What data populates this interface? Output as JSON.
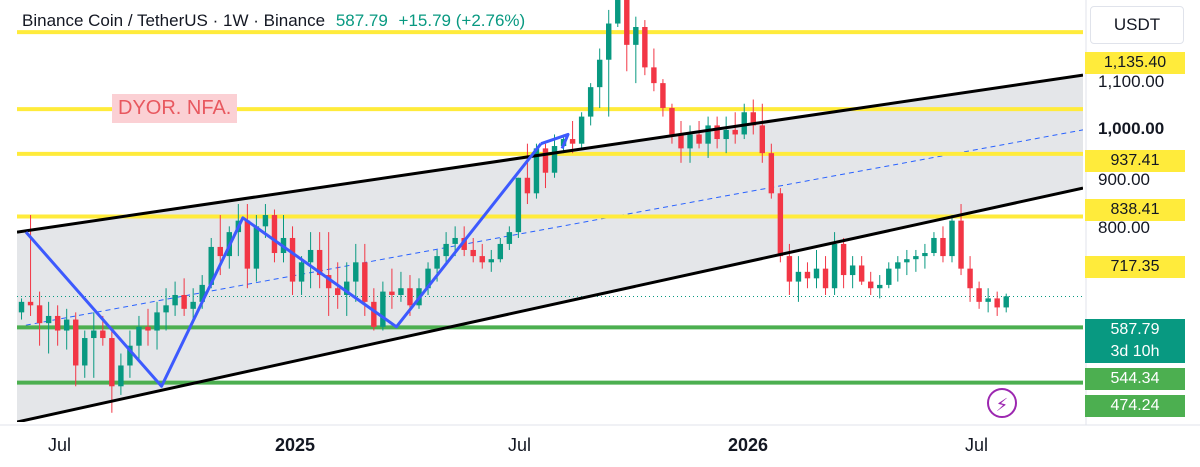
{
  "header": {
    "symbol": "Binance Coin / TetherUS",
    "sep1": "·",
    "interval": "1W",
    "sep2": "·",
    "exchange": "Binance",
    "price": "587.79",
    "change": "+15.79 (+2.76%)"
  },
  "annotation": {
    "text": "DYOR. NFA."
  },
  "price_axis": {
    "unit": "USDT",
    "ticks": [
      "1,100.00",
      "1,000.00",
      "900.00",
      "800.00"
    ],
    "bold_tick": "1,000.00"
  },
  "level_tags": {
    "l1135": "1,135.40",
    "l937": "937.41",
    "l838": "838.41",
    "l717": "717.35",
    "last": "587.79",
    "countdown": "3d 10h",
    "l544": "544.34",
    "l474": "474.24"
  },
  "time_axis": {
    "jul1": "Jul",
    "y2025": "2025",
    "jul2": "Jul",
    "y2026": "2026",
    "jul3": "Jul"
  },
  "icons": {
    "lightning": "lightning-icon"
  },
  "colors": {
    "up": "#089981",
    "down": "#f23645",
    "yellow_level": "#ffeb3b",
    "green_level": "#4caf50",
    "zigzag": "#3d5afe",
    "channel_fill": "#e3e5e8"
  },
  "chart_data": {
    "type": "candlestick",
    "symbol": "BNB/USDT",
    "interval": "1W",
    "y_scale": "log",
    "ylim": [
      430,
      1230
    ],
    "x_range": [
      "2024-06-17",
      "2026-09-21"
    ],
    "candles_ohlc": [
      [
        565,
        585,
        555,
        580
      ],
      [
        580,
        720,
        560,
        575
      ],
      [
        575,
        595,
        520,
        550
      ],
      [
        550,
        580,
        510,
        560
      ],
      [
        560,
        575,
        520,
        540
      ],
      [
        540,
        570,
        515,
        555
      ],
      [
        555,
        565,
        470,
        495
      ],
      [
        495,
        540,
        480,
        530
      ],
      [
        530,
        565,
        480,
        540
      ],
      [
        540,
        560,
        520,
        530
      ],
      [
        530,
        545,
        440,
        470
      ],
      [
        470,
        510,
        460,
        495
      ],
      [
        495,
        540,
        480,
        520
      ],
      [
        520,
        560,
        500,
        545
      ],
      [
        545,
        570,
        520,
        540
      ],
      [
        540,
        580,
        515,
        565
      ],
      [
        565,
        600,
        540,
        575
      ],
      [
        575,
        610,
        560,
        590
      ],
      [
        590,
        615,
        560,
        570
      ],
      [
        570,
        600,
        550,
        580
      ],
      [
        580,
        620,
        570,
        605
      ],
      [
        605,
        680,
        600,
        665
      ],
      [
        665,
        720,
        620,
        650
      ],
      [
        650,
        700,
        630,
        690
      ],
      [
        690,
        740,
        650,
        710
      ],
      [
        710,
        740,
        600,
        630
      ],
      [
        630,
        720,
        610,
        700
      ],
      [
        700,
        740,
        680,
        720
      ],
      [
        720,
        730,
        640,
        655
      ],
      [
        655,
        720,
        640,
        680
      ],
      [
        680,
        700,
        590,
        610
      ],
      [
        610,
        650,
        590,
        640
      ],
      [
        640,
        690,
        600,
        660
      ],
      [
        660,
        690,
        600,
        620
      ],
      [
        620,
        690,
        560,
        600
      ],
      [
        600,
        640,
        570,
        590
      ],
      [
        590,
        640,
        560,
        610
      ],
      [
        610,
        670,
        580,
        640
      ],
      [
        640,
        670,
        560,
        580
      ],
      [
        580,
        600,
        540,
        545
      ],
      [
        545,
        610,
        540,
        595
      ],
      [
        595,
        630,
        570,
        590
      ],
      [
        590,
        625,
        580,
        600
      ],
      [
        600,
        620,
        560,
        575
      ],
      [
        575,
        615,
        570,
        600
      ],
      [
        600,
        640,
        590,
        630
      ],
      [
        630,
        660,
        610,
        650
      ],
      [
        650,
        690,
        640,
        670
      ],
      [
        670,
        700,
        650,
        680
      ],
      [
        680,
        700,
        650,
        660
      ],
      [
        660,
        680,
        640,
        650
      ],
      [
        650,
        670,
        630,
        640
      ],
      [
        640,
        660,
        625,
        645
      ],
      [
        645,
        680,
        640,
        670
      ],
      [
        670,
        700,
        660,
        690
      ],
      [
        690,
        790,
        680,
        790
      ],
      [
        790,
        860,
        740,
        760
      ],
      [
        760,
        860,
        750,
        850
      ],
      [
        850,
        860,
        770,
        800
      ],
      [
        800,
        880,
        790,
        855
      ],
      [
        855,
        880,
        840,
        870
      ],
      [
        870,
        910,
        840,
        860
      ],
      [
        860,
        930,
        850,
        920
      ],
      [
        920,
        1000,
        900,
        990
      ],
      [
        990,
        1090,
        940,
        1060
      ],
      [
        1060,
        1200,
        920,
        1160
      ],
      [
        1160,
        1370,
        1150,
        1300
      ],
      [
        1300,
        1320,
        1030,
        1100
      ],
      [
        1100,
        1180,
        1000,
        1150
      ],
      [
        1150,
        1170,
        1020,
        1040
      ],
      [
        1040,
        1090,
        980,
        1000
      ],
      [
        1000,
        1010,
        920,
        940
      ],
      [
        940,
        950,
        860,
        880
      ],
      [
        880,
        910,
        820,
        850
      ],
      [
        850,
        900,
        820,
        880
      ],
      [
        880,
        910,
        850,
        860
      ],
      [
        860,
        920,
        830,
        900
      ],
      [
        900,
        920,
        850,
        870
      ],
      [
        870,
        920,
        840,
        890
      ],
      [
        890,
        930,
        860,
        880
      ],
      [
        880,
        950,
        870,
        930
      ],
      [
        930,
        960,
        880,
        900
      ],
      [
        900,
        950,
        820,
        840
      ],
      [
        840,
        860,
        750,
        760
      ],
      [
        760,
        770,
        640,
        650
      ],
      [
        650,
        670,
        590,
        610
      ],
      [
        610,
        650,
        580,
        625
      ],
      [
        625,
        640,
        600,
        615
      ],
      [
        615,
        660,
        600,
        630
      ],
      [
        630,
        650,
        590,
        600
      ],
      [
        600,
        690,
        590,
        670
      ],
      [
        670,
        680,
        600,
        620
      ],
      [
        620,
        650,
        600,
        635
      ],
      [
        635,
        650,
        605,
        610
      ],
      [
        610,
        625,
        590,
        600
      ],
      [
        600,
        620,
        585,
        605
      ],
      [
        605,
        640,
        600,
        630
      ],
      [
        630,
        650,
        610,
        640
      ],
      [
        640,
        660,
        620,
        645
      ],
      [
        645,
        660,
        625,
        650
      ],
      [
        650,
        670,
        630,
        655
      ],
      [
        655,
        690,
        650,
        680
      ],
      [
        680,
        700,
        640,
        650
      ],
      [
        650,
        720,
        640,
        710
      ],
      [
        710,
        740,
        620,
        630
      ],
      [
        630,
        650,
        580,
        600
      ],
      [
        600,
        610,
        570,
        580
      ],
      [
        580,
        600,
        565,
        585
      ],
      [
        585,
        595,
        560,
        572
      ],
      [
        572,
        592,
        565,
        588
      ]
    ],
    "levels": [
      {
        "value": 1135.4,
        "color": "yellow"
      },
      {
        "value": 937.41,
        "color": "yellow"
      },
      {
        "value": 838.41,
        "color": "yellow"
      },
      {
        "value": 717.35,
        "color": "yellow"
      },
      {
        "value": 544.34,
        "color": "green"
      },
      {
        "value": 474.24,
        "color": "green"
      }
    ],
    "current_price": 587.79,
    "time_to_close": "3d 10h",
    "channel": {
      "upper": [
        [
          "2024-06-17",
          690
        ],
        [
          "2026-09-21",
          1020
        ]
      ],
      "lower": [
        [
          "2024-06-17",
          430
        ],
        [
          "2026-09-21",
          770
        ]
      ],
      "mid": [
        [
          "2024-06-17",
          545
        ],
        [
          "2026-09-21",
          890
        ]
      ]
    },
    "zigzag": [
      [
        "2024-06-24",
        690
      ],
      [
        "2024-10-07",
        470
      ],
      [
        "2024-12-09",
        715
      ],
      [
        "2025-04-07",
        545
      ],
      [
        "2025-07-28",
        860
      ]
    ],
    "zigzag_arrow_end": [
      "2025-08-18",
      880
    ]
  }
}
